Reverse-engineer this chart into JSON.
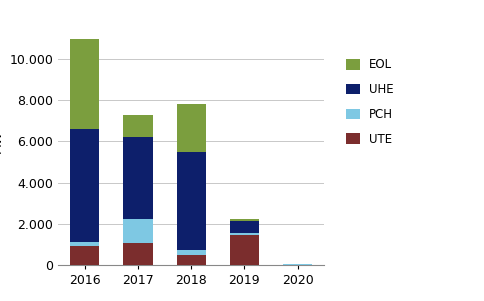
{
  "categories": [
    "2016",
    "2017",
    "2018",
    "2019",
    "2020"
  ],
  "series": {
    "UTE": [
      900,
      1050,
      500,
      1450,
      0
    ],
    "PCH": [
      200,
      1200,
      200,
      100,
      50
    ],
    "UHE": [
      5500,
      3950,
      4800,
      600,
      0
    ],
    "EOL": [
      4400,
      1100,
      2300,
      100,
      0
    ]
  },
  "colors": {
    "UTE": "#7B2D2D",
    "PCH": "#7EC8E3",
    "UHE": "#0D1F6B",
    "EOL": "#7B9E3E"
  },
  "legend_order": [
    "EOL",
    "UHE",
    "PCH",
    "UTE"
  ],
  "ylim": [
    0,
    12000
  ],
  "yticks": [
    0,
    2000,
    4000,
    6000,
    8000,
    10000
  ],
  "background_color": "#ffffff",
  "grid_color": "#c8c8c8",
  "bar_width": 0.55,
  "figsize": [
    4.84,
    3.01
  ],
  "dpi": 100
}
